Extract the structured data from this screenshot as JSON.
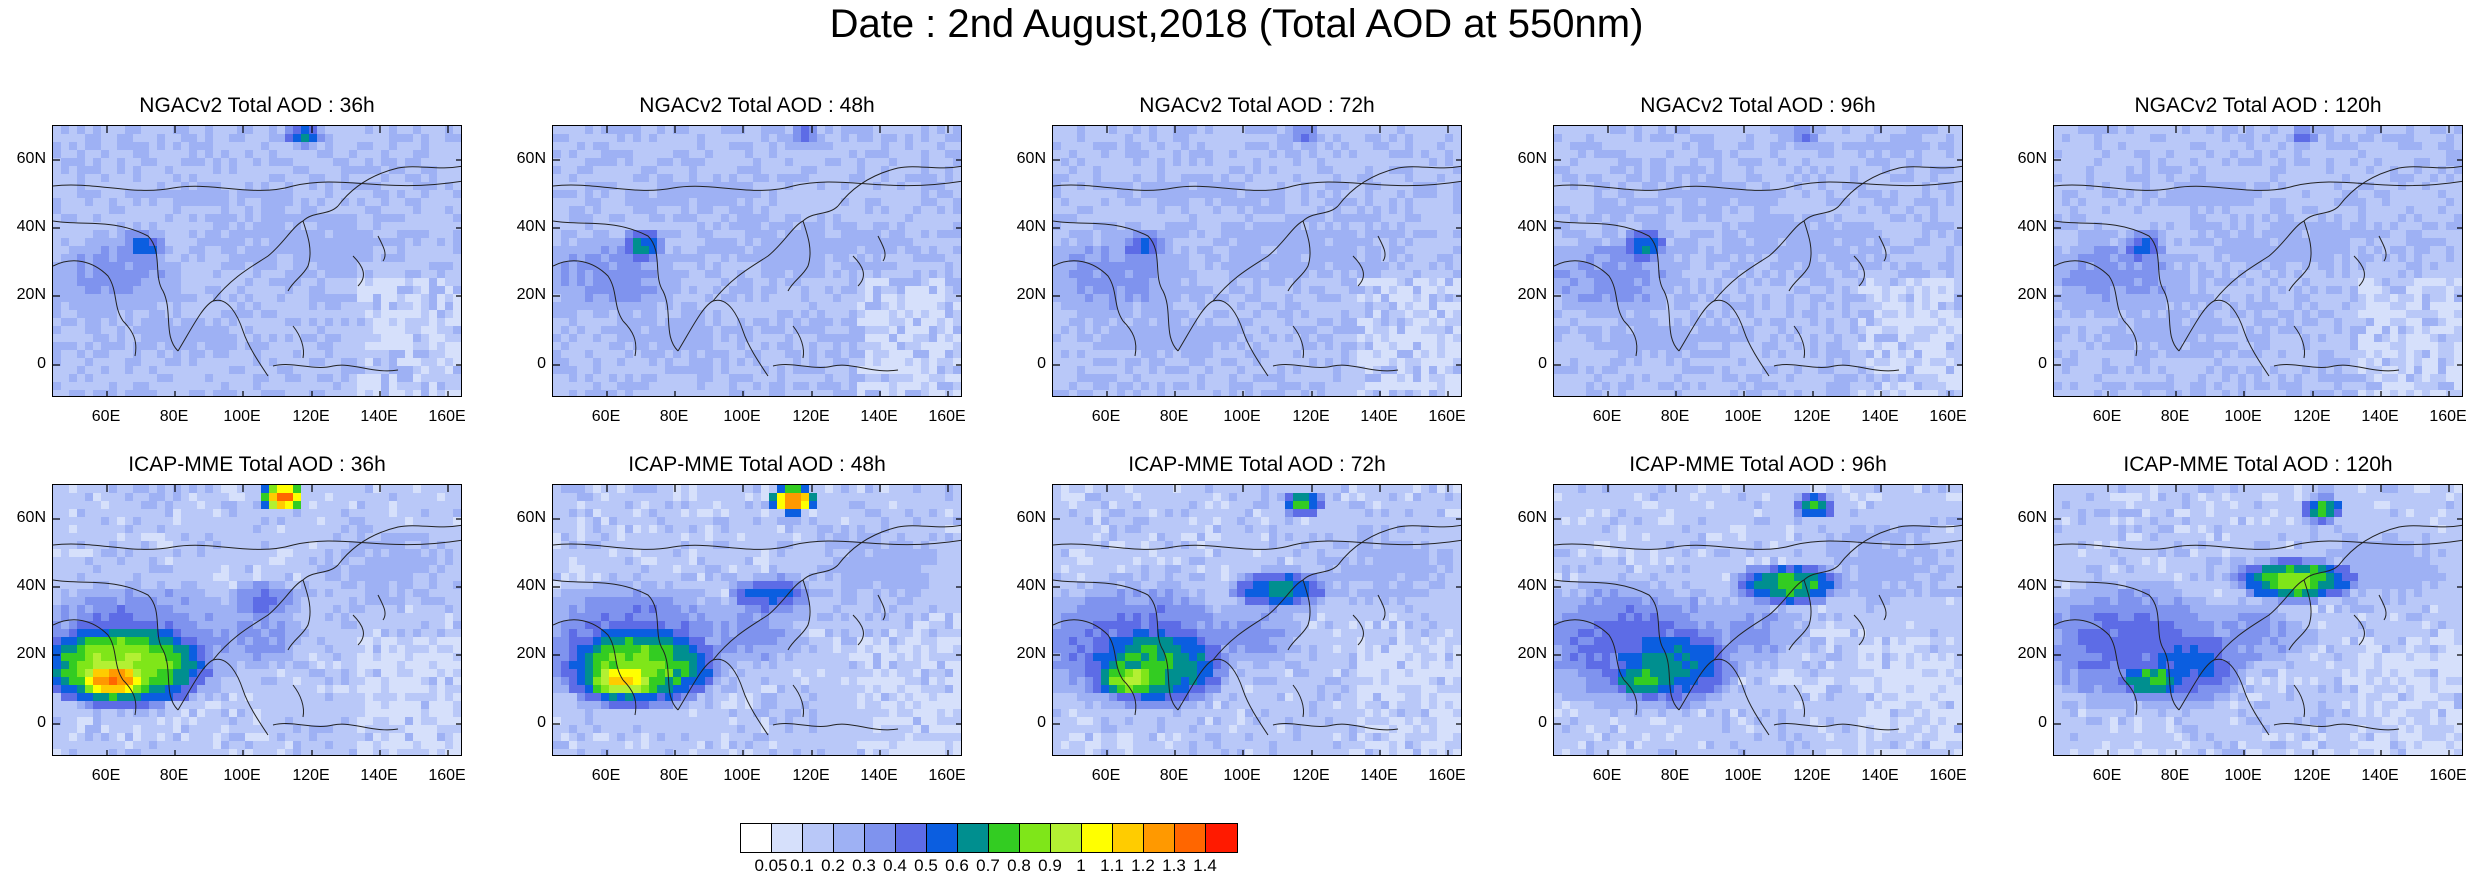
{
  "title": "Date : 2nd August,2018 (Total AOD at 550nm)",
  "rows": [
    {
      "model": "NGACv2",
      "panels": [
        {
          "title": "NGACv2 Total AOD : 36h"
        },
        {
          "title": "NGACv2 Total AOD : 48h"
        },
        {
          "title": "NGACv2 Total AOD : 72h"
        },
        {
          "title": "NGACv2 Total AOD : 96h"
        },
        {
          "title": "NGACv2 Total AOD : 120h"
        }
      ]
    },
    {
      "model": "ICAP-MME",
      "panels": [
        {
          "title": "ICAP-MME Total AOD : 36h"
        },
        {
          "title": "ICAP-MME Total AOD : 48h"
        },
        {
          "title": "ICAP-MME Total AOD : 72h"
        },
        {
          "title": "ICAP-MME Total AOD : 96h"
        },
        {
          "title": "ICAP-MME Total AOD : 120h"
        }
      ]
    }
  ],
  "lat_labels": [
    "60N",
    "40N",
    "20N",
    "0"
  ],
  "lon_labels": [
    "60E",
    "80E",
    "100E",
    "120E",
    "140E",
    "160E"
  ],
  "colorbar": {
    "labels": [
      "0.05",
      "0.1",
      "0.2",
      "0.3",
      "0.4",
      "0.5",
      "0.6",
      "0.7",
      "0.8",
      "0.9",
      "1",
      "1.1",
      "1.2",
      "1.3",
      "1.4"
    ],
    "colors": [
      "#ffffff",
      "#d6e0fb",
      "#b9c8f8",
      "#9eb1f4",
      "#7f93ee",
      "#5d6ce6",
      "#0b5ee0",
      "#008f8f",
      "#33cc22",
      "#7fe619",
      "#b3f033",
      "#ffff00",
      "#ffcc00",
      "#ff9900",
      "#ff6600",
      "#ff1a00"
    ]
  }
}
